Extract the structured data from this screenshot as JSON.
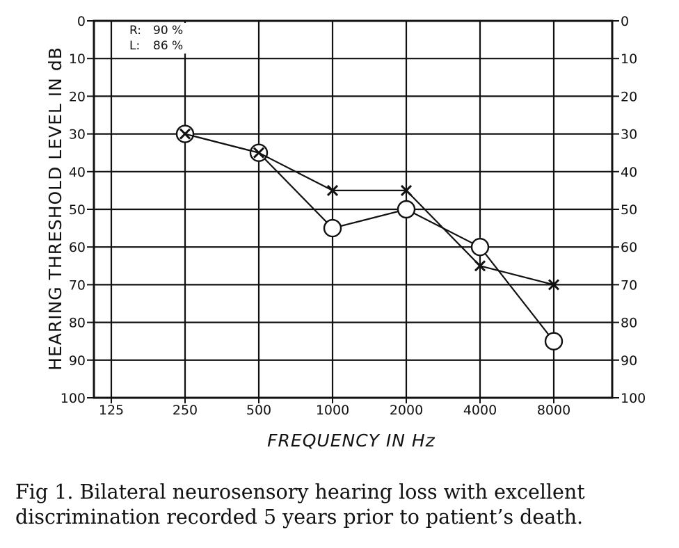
{
  "chart_data": {
    "type": "line",
    "title": "",
    "xlabel": "FREQUENCY IN Hz",
    "ylabel": "HEARING THRESHOLD LEVEL IN dB",
    "x_tick_labels": [
      "125",
      "250",
      "500",
      "1000",
      "2000",
      "4000",
      "8000"
    ],
    "y_tick_labels": [
      "0",
      "10",
      "20",
      "30",
      "40",
      "50",
      "60",
      "70",
      "80",
      "90",
      "100"
    ],
    "ylim": [
      0,
      100
    ],
    "y_inverted": true,
    "x_scale": "log2",
    "grid": true,
    "legend_box": {
      "lines": [
        {
          "ear": "R:",
          "value": "90 %"
        },
        {
          "ear": "L:",
          "value": "86 %"
        }
      ]
    },
    "series": [
      {
        "marker": "circle",
        "x": [
          250,
          500,
          1000,
          2000,
          4000,
          8000
        ],
        "y": [
          30,
          35,
          55,
          50,
          60,
          85
        ]
      },
      {
        "marker": "cross",
        "x": [
          250,
          500,
          1000,
          2000,
          4000,
          8000
        ],
        "y": [
          30,
          35,
          45,
          45,
          65,
          70
        ]
      }
    ]
  },
  "caption": {
    "line1": "Fig 1. Bilateral neurosensory hearing loss with excellent",
    "line2": "discrimination recorded 5 years prior to patient’s death."
  }
}
